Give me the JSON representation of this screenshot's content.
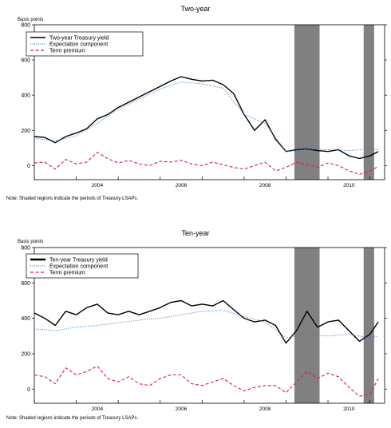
{
  "chart_data": [
    {
      "type": "line",
      "title": "Two-year",
      "ylabel": "Basis points",
      "xlim": [
        2003.0,
        2011.35
      ],
      "ylim": [
        -80,
        800
      ],
      "yticks": [
        0,
        200,
        400,
        600,
        800
      ],
      "xticks": [
        2004,
        2006,
        2008,
        2010
      ],
      "shaded": [
        [
          2009.2,
          2009.8
        ],
        [
          2010.85,
          2011.1
        ]
      ],
      "shaded_color": "#808080",
      "grid": false,
      "legend_position": "top-left",
      "series": [
        {
          "name": "Two-year Treasury yield",
          "color": "#000000",
          "dash": "solid",
          "x": [
            2003.0,
            2003.25,
            2003.5,
            2003.75,
            2004.0,
            2004.25,
            2004.5,
            2004.75,
            2005.0,
            2005.25,
            2005.5,
            2005.75,
            2006.0,
            2006.25,
            2006.5,
            2006.75,
            2007.0,
            2007.25,
            2007.5,
            2007.75,
            2008.0,
            2008.25,
            2008.5,
            2008.75,
            2009.0,
            2009.25,
            2009.5,
            2009.75,
            2010.0,
            2010.25,
            2010.5,
            2010.75,
            2011.0,
            2011.2
          ],
          "values": [
            165,
            160,
            130,
            165,
            185,
            210,
            265,
            290,
            330,
            360,
            390,
            420,
            450,
            480,
            505,
            490,
            480,
            485,
            460,
            410,
            290,
            200,
            260,
            150,
            80,
            90,
            95,
            85,
            80,
            90,
            55,
            40,
            55,
            80
          ]
        },
        {
          "name": "Expectation component",
          "color": "#3a7bd5",
          "dash": "dotted",
          "x": [
            2003.0,
            2003.5,
            2004.0,
            2004.5,
            2005.0,
            2005.5,
            2006.0,
            2006.5,
            2007.0,
            2007.5,
            2008.0,
            2008.5,
            2009.0,
            2009.5,
            2010.0,
            2010.5,
            2011.0,
            2011.2
          ],
          "values": [
            155,
            140,
            170,
            240,
            320,
            380,
            435,
            475,
            465,
            440,
            290,
            240,
            80,
            95,
            90,
            85,
            95,
            90
          ]
        },
        {
          "name": "Term premium",
          "color": "#d81b60",
          "dash": "dashed",
          "x": [
            2003.0,
            2003.25,
            2003.5,
            2003.75,
            2004.0,
            2004.25,
            2004.5,
            2004.75,
            2005.0,
            2005.25,
            2005.5,
            2005.75,
            2006.0,
            2006.25,
            2006.5,
            2006.75,
            2007.0,
            2007.25,
            2007.5,
            2007.75,
            2008.0,
            2008.25,
            2008.5,
            2008.75,
            2009.0,
            2009.25,
            2009.5,
            2009.75,
            2010.0,
            2010.25,
            2010.5,
            2010.75,
            2011.0,
            2011.2
          ],
          "values": [
            15,
            20,
            -20,
            35,
            10,
            20,
            75,
            40,
            15,
            30,
            10,
            0,
            25,
            20,
            30,
            10,
            0,
            20,
            5,
            -10,
            -20,
            0,
            20,
            -30,
            -10,
            20,
            5,
            -10,
            15,
            0,
            -30,
            -50,
            -30,
            -5
          ]
        }
      ]
    },
    {
      "type": "line",
      "title": "Ten-year",
      "ylabel": "Basis points",
      "xlim": [
        2003.0,
        2011.35
      ],
      "ylim": [
        -80,
        800
      ],
      "yticks": [
        0,
        200,
        400,
        600,
        800
      ],
      "xticks": [
        2004,
        2006,
        2008,
        2010
      ],
      "shaded": [
        [
          2009.2,
          2009.8
        ],
        [
          2010.85,
          2011.1
        ]
      ],
      "shaded_color": "#808080",
      "grid": false,
      "legend_position": "top-left",
      "series": [
        {
          "name": "Ten-year Treasury yield",
          "color": "#000000",
          "dash": "solid",
          "x": [
            2003.0,
            2003.25,
            2003.5,
            2003.75,
            2004.0,
            2004.25,
            2004.5,
            2004.75,
            2005.0,
            2005.25,
            2005.5,
            2005.75,
            2006.0,
            2006.25,
            2006.5,
            2006.75,
            2007.0,
            2007.25,
            2007.5,
            2007.75,
            2008.0,
            2008.25,
            2008.5,
            2008.75,
            2009.0,
            2009.25,
            2009.5,
            2009.75,
            2010.0,
            2010.25,
            2010.5,
            2010.75,
            2011.0,
            2011.2
          ],
          "values": [
            430,
            400,
            360,
            440,
            420,
            460,
            480,
            430,
            420,
            440,
            420,
            440,
            460,
            490,
            500,
            470,
            480,
            470,
            500,
            450,
            400,
            380,
            390,
            360,
            260,
            330,
            440,
            350,
            380,
            390,
            330,
            270,
            310,
            380
          ]
        },
        {
          "name": "Expectation component",
          "color": "#3a7bd5",
          "dash": "dotted",
          "x": [
            2003.0,
            2003.5,
            2004.0,
            2004.5,
            2005.0,
            2005.5,
            2006.0,
            2006.5,
            2007.0,
            2007.5,
            2008.0,
            2008.5,
            2009.0,
            2009.5,
            2010.0,
            2010.5,
            2011.0,
            2011.2
          ],
          "values": [
            340,
            330,
            350,
            360,
            375,
            390,
            400,
            420,
            440,
            445,
            410,
            380,
            290,
            310,
            300,
            310,
            290,
            300
          ]
        },
        {
          "name": "Term premium",
          "color": "#d81b60",
          "dash": "dashed",
          "x": [
            2003.0,
            2003.25,
            2003.5,
            2003.75,
            2004.0,
            2004.25,
            2004.5,
            2004.75,
            2005.0,
            2005.25,
            2005.5,
            2005.75,
            2006.0,
            2006.25,
            2006.5,
            2006.75,
            2007.0,
            2007.25,
            2007.5,
            2007.75,
            2008.0,
            2008.25,
            2008.5,
            2008.75,
            2009.0,
            2009.25,
            2009.5,
            2009.75,
            2010.0,
            2010.25,
            2010.5,
            2010.75,
            2011.0,
            2011.2
          ],
          "values": [
            80,
            70,
            30,
            120,
            80,
            100,
            130,
            60,
            40,
            70,
            30,
            20,
            60,
            80,
            80,
            30,
            20,
            40,
            60,
            20,
            -10,
            10,
            20,
            20,
            -20,
            40,
            100,
            60,
            90,
            70,
            10,
            -40,
            -30,
            60
          ]
        }
      ]
    }
  ],
  "notes": {
    "top": "Note: Shaded regions indicate the periods of Treasury LSAPs.",
    "bottom": "Note: Shaded regions indicate the periods of Treasury LSAPs."
  }
}
